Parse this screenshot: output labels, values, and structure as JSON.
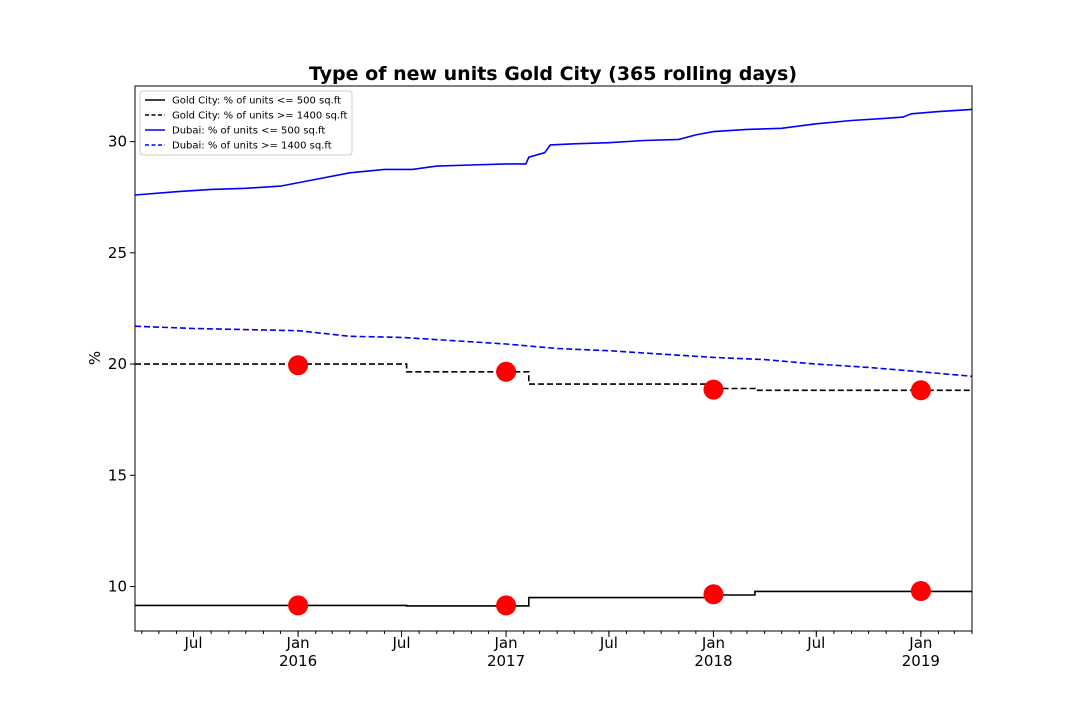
{
  "chart_data": {
    "type": "line",
    "title": "Type of new units Gold City (365 rolling days)",
    "xlabel": "",
    "ylabel": "%",
    "xlim": [
      "2015-03-20",
      "2019-04-01"
    ],
    "ylim": [
      8,
      32.5
    ],
    "yticks": [
      10,
      15,
      20,
      25,
      30
    ],
    "xticks": [
      {
        "date": "2015-07-01",
        "label": "Jul",
        "sub": ""
      },
      {
        "date": "2016-01-01",
        "label": "Jan",
        "sub": "2016"
      },
      {
        "date": "2016-07-01",
        "label": "Jul",
        "sub": ""
      },
      {
        "date": "2017-01-01",
        "label": "Jan",
        "sub": "2017"
      },
      {
        "date": "2017-07-01",
        "label": "Jul",
        "sub": ""
      },
      {
        "date": "2018-01-01",
        "label": "Jan",
        "sub": "2018"
      },
      {
        "date": "2018-07-01",
        "label": "Jul",
        "sub": ""
      },
      {
        "date": "2019-01-01",
        "label": "Jan",
        "sub": "2019"
      }
    ],
    "grid": false,
    "legend_position": "top-left",
    "series": [
      {
        "name": "Gold City: % of units <= 500 sq.ft",
        "color": "#000000",
        "dash": "solid",
        "step": true,
        "points": [
          [
            "2015-03-20",
            9.15
          ],
          [
            "2016-07-10",
            9.13
          ],
          [
            "2017-02-10",
            9.5
          ],
          [
            "2017-12-20",
            9.62
          ],
          [
            "2018-03-15",
            9.78
          ],
          [
            "2019-04-01",
            9.78
          ]
        ]
      },
      {
        "name": "Gold City: % of units >= 1400 sq.ft",
        "color": "#000000",
        "dash": "dashed",
        "step": true,
        "points": [
          [
            "2015-03-20",
            20.0
          ],
          [
            "2016-07-10",
            19.65
          ],
          [
            "2017-02-10",
            19.1
          ],
          [
            "2017-12-20",
            18.9
          ],
          [
            "2018-03-15",
            18.82
          ],
          [
            "2019-04-01",
            18.82
          ]
        ]
      },
      {
        "name": "Dubai: % of units <= 500 sq.ft",
        "color": "#0000ff",
        "dash": "solid",
        "step": false,
        "points": [
          [
            "2015-03-20",
            27.6
          ],
          [
            "2015-06-01",
            27.75
          ],
          [
            "2015-08-01",
            27.85
          ],
          [
            "2015-10-01",
            27.9
          ],
          [
            "2015-12-01",
            28.0
          ],
          [
            "2016-02-01",
            28.3
          ],
          [
            "2016-04-01",
            28.6
          ],
          [
            "2016-06-01",
            28.75
          ],
          [
            "2016-07-20",
            28.75
          ],
          [
            "2016-09-01",
            28.9
          ],
          [
            "2016-11-01",
            28.95
          ],
          [
            "2017-01-01",
            29.0
          ],
          [
            "2017-02-05",
            29.0
          ],
          [
            "2017-02-10",
            29.3
          ],
          [
            "2017-03-10",
            29.5
          ],
          [
            "2017-03-20",
            29.85
          ],
          [
            "2017-05-01",
            29.9
          ],
          [
            "2017-07-01",
            29.95
          ],
          [
            "2017-09-01",
            30.05
          ],
          [
            "2017-11-01",
            30.1
          ],
          [
            "2017-12-01",
            30.3
          ],
          [
            "2018-01-01",
            30.45
          ],
          [
            "2018-03-01",
            30.55
          ],
          [
            "2018-05-01",
            30.6
          ],
          [
            "2018-07-01",
            30.8
          ],
          [
            "2018-09-01",
            30.95
          ],
          [
            "2018-11-01",
            31.05
          ],
          [
            "2018-12-01",
            31.1
          ],
          [
            "2018-12-15",
            31.25
          ],
          [
            "2019-02-01",
            31.35
          ],
          [
            "2019-04-01",
            31.45
          ]
        ]
      },
      {
        "name": "Dubai: % of units >= 1400 sq.ft",
        "color": "#0000ff",
        "dash": "dashed",
        "step": false,
        "points": [
          [
            "2015-03-20",
            21.7
          ],
          [
            "2015-07-01",
            21.6
          ],
          [
            "2016-01-01",
            21.5
          ],
          [
            "2016-04-01",
            21.25
          ],
          [
            "2016-07-01",
            21.2
          ],
          [
            "2016-10-01",
            21.05
          ],
          [
            "2017-01-01",
            20.9
          ],
          [
            "2017-04-01",
            20.7
          ],
          [
            "2017-07-01",
            20.6
          ],
          [
            "2017-10-01",
            20.45
          ],
          [
            "2018-01-01",
            20.3
          ],
          [
            "2018-04-01",
            20.2
          ],
          [
            "2018-07-01",
            20.0
          ],
          [
            "2018-10-01",
            19.85
          ],
          [
            "2019-01-01",
            19.65
          ],
          [
            "2019-04-01",
            19.45
          ]
        ]
      }
    ],
    "markers": {
      "color": "#ff0000",
      "points": [
        [
          "2016-01-01",
          9.15
        ],
        [
          "2017-01-01",
          9.15
        ],
        [
          "2018-01-01",
          9.65
        ],
        [
          "2019-01-01",
          9.8
        ],
        [
          "2016-01-01",
          19.95
        ],
        [
          "2017-01-01",
          19.65
        ],
        [
          "2018-01-01",
          18.85
        ],
        [
          "2019-01-01",
          18.82
        ]
      ]
    }
  }
}
